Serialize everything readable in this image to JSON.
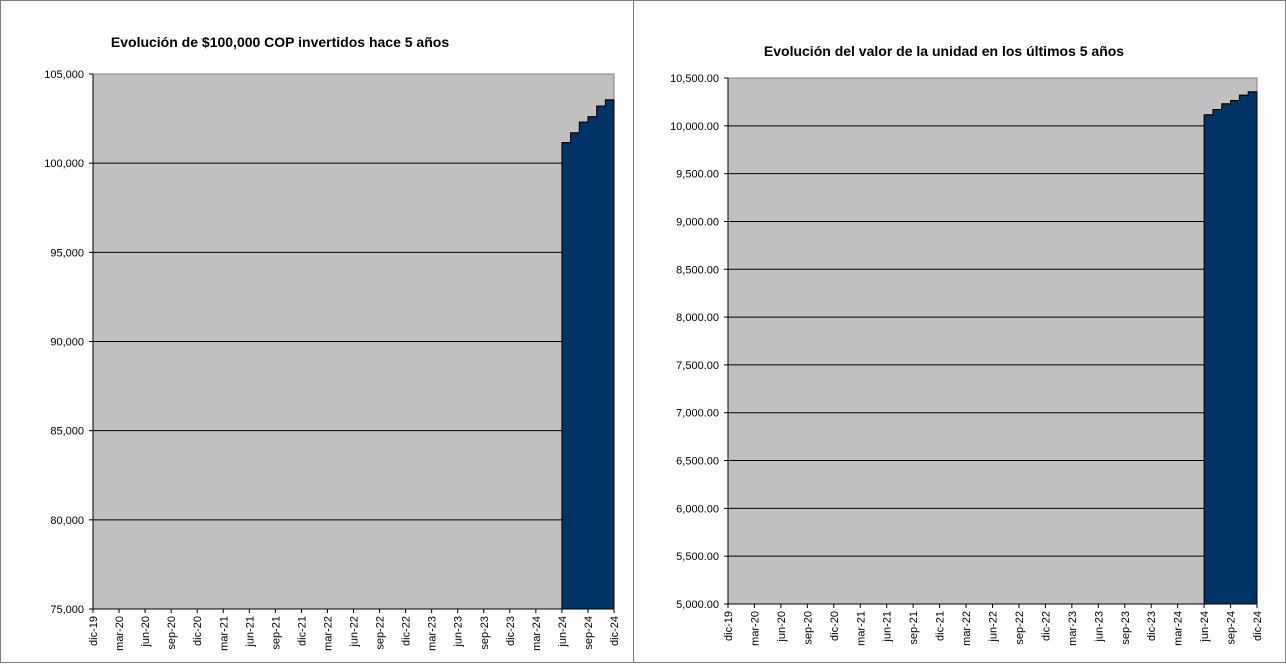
{
  "colors": {
    "plot_background": "#c0c0c0",
    "series_fill": "#003366",
    "gridline": "#000000",
    "border": "#7f7f7f"
  },
  "chart_data": [
    {
      "type": "area",
      "title": "Evolución de $100,000  COP invertidos hace 5 años",
      "xlabel": "",
      "ylabel": "",
      "ylim": [
        75000,
        105000
      ],
      "grid": true,
      "y_ticks": [
        75000,
        80000,
        85000,
        90000,
        95000,
        100000,
        105000
      ],
      "y_tick_labels": [
        "75,000",
        "80,000",
        "85,000",
        "90,000",
        "95,000",
        "100,000",
        "105,000"
      ],
      "x_tick_labels": [
        "dic-19",
        "mar-20",
        "jun-20",
        "sep-20",
        "dic-20",
        "mar-21",
        "jun-21",
        "sep-21",
        "dic-21",
        "mar-22",
        "jun-22",
        "sep-22",
        "dic-22",
        "mar-23",
        "jun-23",
        "sep-23",
        "dic-23",
        "mar-24",
        "jun-24",
        "sep-24",
        "dic-24"
      ],
      "series": [
        {
          "x": [
            "jul-24",
            "ago-24",
            "sep-24",
            "oct-24",
            "nov-24",
            "dic-24"
          ],
          "values": [
            101150,
            101700,
            102300,
            102600,
            103200,
            103550
          ]
        }
      ]
    },
    {
      "type": "area",
      "title": "Evolución del valor de la unidad en los últimos 5 años",
      "xlabel": "",
      "ylabel": "",
      "ylim": [
        5000,
        10500
      ],
      "grid": true,
      "y_ticks": [
        5000,
        5500,
        6000,
        6500,
        7000,
        7500,
        8000,
        8500,
        9000,
        9500,
        10000,
        10500
      ],
      "y_tick_labels": [
        "5,000.00",
        "5,500.00",
        "6,000.00",
        "6,500.00",
        "7,000.00",
        "7,500.00",
        "8,000.00",
        "8,500.00",
        "9,000.00",
        "9,500.00",
        "10,000.00",
        "10,500.00"
      ],
      "x_tick_labels": [
        "dic-19",
        "mar-20",
        "jun-20",
        "sep-20",
        "dic-20",
        "mar-21",
        "jun-21",
        "sep-21",
        "dic-21",
        "mar-22",
        "jun-22",
        "sep-22",
        "dic-22",
        "mar-23",
        "jun-23",
        "sep-23",
        "dic-23",
        "mar-24",
        "jun-24",
        "sep-24",
        "dic-24"
      ],
      "series": [
        {
          "x": [
            "jul-24",
            "ago-24",
            "sep-24",
            "oct-24",
            "nov-24",
            "dic-24"
          ],
          "values": [
            10115,
            10170,
            10230,
            10265,
            10320,
            10355
          ]
        }
      ]
    }
  ]
}
